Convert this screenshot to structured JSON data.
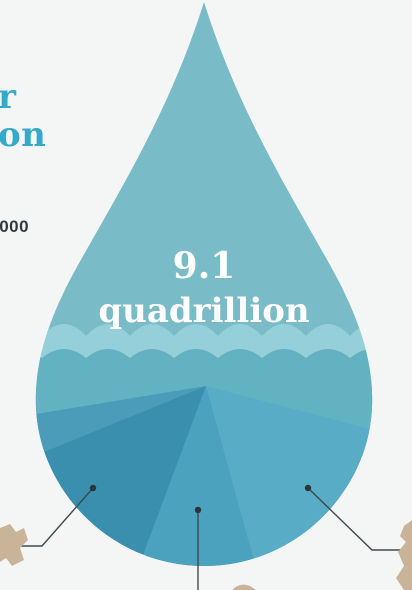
{
  "left_heading": {
    "line1": "r",
    "line2": "on"
  },
  "left_number": ",000",
  "drop": {
    "value": "9.1",
    "unit": "quadrillion"
  },
  "colors": {
    "accent": "#35a9c9",
    "drop_upper": "#79bcc8",
    "wave": "#8ecdd7",
    "drop_lower": "#62b2c2",
    "segment_left": "#3a8fae",
    "segment_mid": "#4aa2bf",
    "segment_right": "#58acc6",
    "land": "#c9b49a"
  }
}
